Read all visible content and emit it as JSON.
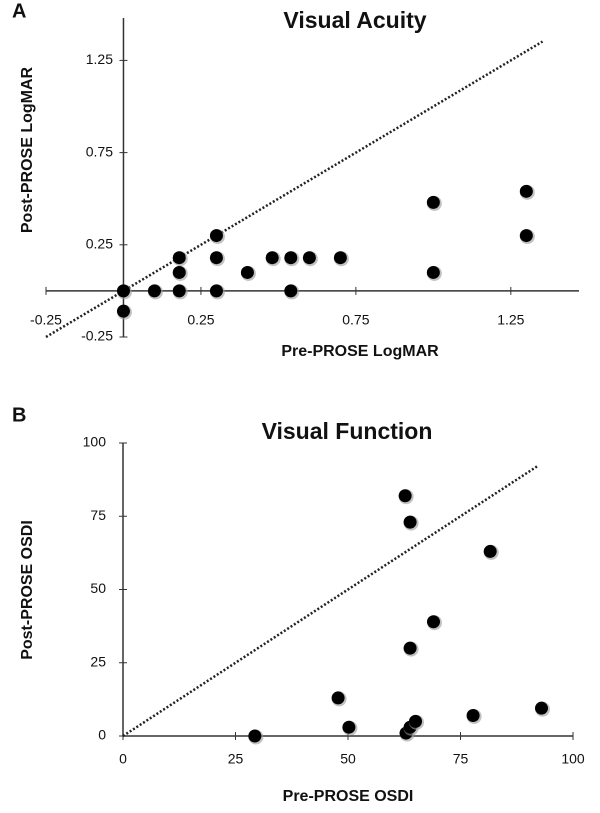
{
  "chart_data": [
    {
      "type": "scatter",
      "panel_label": "A",
      "title": "Visual Acuity",
      "x_label": "Pre-PROSE LogMAR",
      "y_label": "Post-PROSE LogMAR",
      "x": [
        0,
        0,
        0.1,
        0.18,
        0.18,
        0.18,
        0.3,
        0.3,
        0.3,
        0.4,
        0.48,
        0.54,
        0.54,
        0.6,
        0.7,
        1.0,
        1.0,
        1.3,
        1.3
      ],
      "values": [
        0,
        -0.11,
        0,
        0.18,
        0.1,
        0,
        0.3,
        0.18,
        0,
        0.1,
        0.18,
        0.18,
        0,
        0.18,
        0.18,
        0.48,
        0.1,
        0.54,
        0.3
      ],
      "color": "#000000",
      "xlim": [
        -0.25,
        1.47
      ],
      "ylim": [
        -0.25,
        1.48
      ],
      "xticks": [
        -0.25,
        0.25,
        0.75,
        1.25
      ],
      "yticks": [
        -0.25,
        0.25,
        0.75,
        1.25
      ],
      "identity_line": true,
      "grid": false
    },
    {
      "type": "scatter",
      "panel_label": "B",
      "title": "Visual Function",
      "x_label": "Pre-PROSE OSDI",
      "y_label": "Post-PROSE OSDI",
      "x": [
        62.7,
        63.8,
        81.6,
        69,
        63.8,
        47.8,
        50.2,
        29.3,
        62.9,
        63.8,
        65,
        77.8,
        93
      ],
      "values": [
        82,
        73,
        63,
        39,
        30,
        13,
        3,
        0,
        1,
        3,
        5,
        7,
        9.5
      ],
      "color": "#000000",
      "xlim": [
        0,
        100
      ],
      "ylim": [
        0,
        100
      ],
      "xticks": [
        0,
        25,
        50,
        75,
        100
      ],
      "yticks": [
        0,
        25,
        50,
        75,
        100
      ],
      "identity_line": true,
      "grid": false
    }
  ]
}
